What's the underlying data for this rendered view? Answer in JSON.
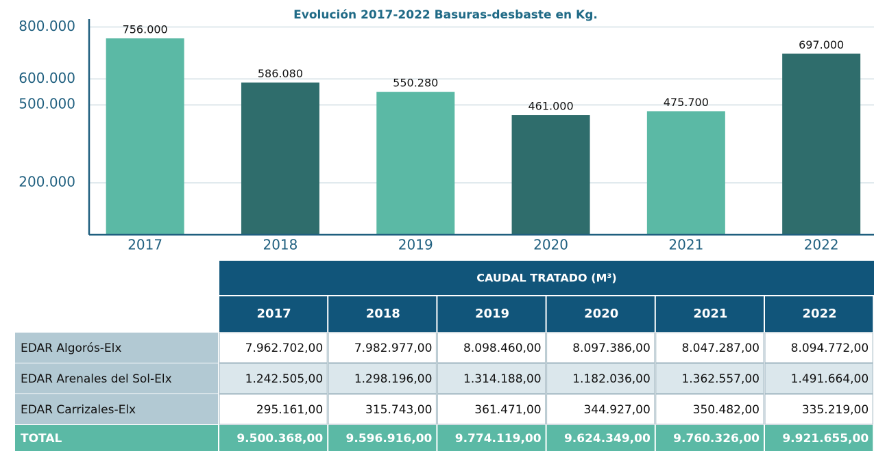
{
  "chart_data": {
    "type": "bar",
    "title": "Evolución 2017-2022 Basuras-desbaste en Kg.",
    "categories": [
      "2017",
      "2018",
      "2019",
      "2020",
      "2021",
      "2022"
    ],
    "values": [
      756000,
      586080,
      550280,
      461000,
      475700,
      697000
    ],
    "value_labels": [
      "756.000",
      "586.080",
      "550.280",
      "461.000",
      "475.700",
      "697.000"
    ],
    "colors": [
      "#5bb9a5",
      "#2f6d6c",
      "#5bb9a5",
      "#2f6d6c",
      "#5bb9a5",
      "#2f6d6c"
    ],
    "ylim": [
      0,
      830000
    ],
    "yticks": [
      {
        "value": 800000,
        "label": "800.000"
      },
      {
        "value": 600000,
        "label": "600.000"
      },
      {
        "value": 500000,
        "label": "500.000"
      },
      {
        "value": 200000,
        "label": "200.000"
      }
    ],
    "grid": true
  },
  "table": {
    "title": "CAUDAL TRATADO (M³)",
    "columns": [
      "2017",
      "2018",
      "2019",
      "2020",
      "2021",
      "2022"
    ],
    "rows": [
      [
        "EDAR Algorós-Elx",
        "7.962.702,00",
        "7.982.977,00",
        "8.098.460,00",
        "8.097.386,00",
        "8.047.287,00",
        "8.094.772,00"
      ],
      [
        "EDAR Arenales del Sol-Elx",
        "1.242.505,00",
        "1.298.196,00",
        "1.314.188,00",
        "1.182.036,00",
        "1.362.557,00",
        "1.491.664,00"
      ],
      [
        "EDAR Carrizales-Elx",
        "295.161,00",
        "315.743,00",
        "361.471,00",
        "344.927,00",
        "350.482,00",
        "335.219,00"
      ],
      [
        "TOTAL",
        "9.500.368,00",
        "9.596.916,00",
        "9.774.119,00",
        "9.624.349,00",
        "9.760.326,00",
        "9.921.655,00"
      ]
    ]
  }
}
